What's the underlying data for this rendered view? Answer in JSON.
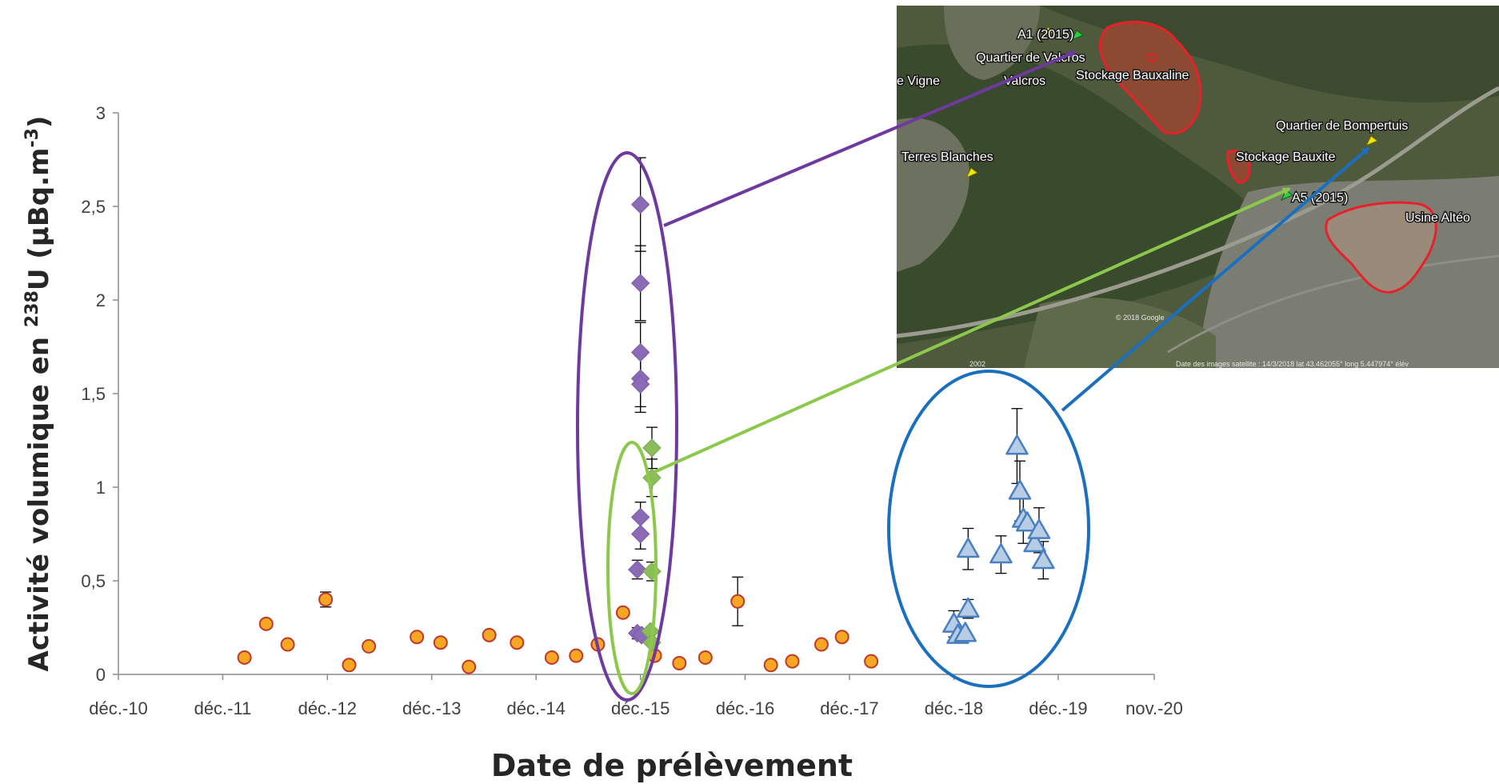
{
  "chart_data": {
    "type": "scatter",
    "title": "",
    "xlabel": "Date de prélèvement",
    "ylabel_prefix": "Activité volumique en ",
    "ylabel_isotope_mass": "238",
    "ylabel_element": "U",
    "ylabel_unit_open": " (µBq.m",
    "ylabel_unit_exp": "-3",
    "ylabel_unit_close": ")",
    "x_ticks": [
      {
        "date": "2010-12",
        "label": "déc.-10"
      },
      {
        "date": "2011-12",
        "label": "déc.-11"
      },
      {
        "date": "2012-12",
        "label": "déc.-12"
      },
      {
        "date": "2013-12",
        "label": "déc.-13"
      },
      {
        "date": "2014-12",
        "label": "déc.-14"
      },
      {
        "date": "2015-12",
        "label": "déc.-15"
      },
      {
        "date": "2016-12",
        "label": "déc.-16"
      },
      {
        "date": "2017-12",
        "label": "déc.-17"
      },
      {
        "date": "2018-12",
        "label": "déc.-18"
      },
      {
        "date": "2019-12",
        "label": "déc.-19"
      },
      {
        "date": "2020-11",
        "label": "nov.-20"
      }
    ],
    "xlim": [
      "2010-12",
      "2020-11"
    ],
    "y_ticks": [
      {
        "value": 0,
        "label": "0"
      },
      {
        "value": 0.5,
        "label": "0,5"
      },
      {
        "value": 1,
        "label": "1"
      },
      {
        "value": 1.5,
        "label": "1,5"
      },
      {
        "value": 2,
        "label": "2"
      },
      {
        "value": 2.5,
        "label": "2,5"
      },
      {
        "value": 3,
        "label": "3"
      }
    ],
    "ylim": [
      0,
      3
    ],
    "grid": false,
    "series": [
      {
        "marker": "circle",
        "fill": "#f5a623",
        "stroke": "#c0392b",
        "points": [
          {
            "x": "2012-02-15",
            "y": 0.09
          },
          {
            "x": "2012-05-01",
            "y": 0.27
          },
          {
            "x": "2012-07-15",
            "y": 0.16
          },
          {
            "x": "2012-11-25",
            "y": 0.4,
            "err": 0.04
          },
          {
            "x": "2013-02-15",
            "y": 0.05
          },
          {
            "x": "2013-04-25",
            "y": 0.15
          },
          {
            "x": "2013-10-10",
            "y": 0.2
          },
          {
            "x": "2014-01-01",
            "y": 0.17
          },
          {
            "x": "2014-04-10",
            "y": 0.04
          },
          {
            "x": "2014-06-20",
            "y": 0.21
          },
          {
            "x": "2014-09-25",
            "y": 0.17
          },
          {
            "x": "2015-01-25",
            "y": 0.09
          },
          {
            "x": "2015-04-20",
            "y": 0.1
          },
          {
            "x": "2015-07-05",
            "y": 0.16
          },
          {
            "x": "2015-10-01",
            "y": 0.33
          },
          {
            "x": "2016-01-20",
            "y": 0.1
          },
          {
            "x": "2016-04-15",
            "y": 0.06
          },
          {
            "x": "2016-07-15",
            "y": 0.09
          },
          {
            "x": "2016-11-05",
            "y": 0.39,
            "err": 0.13
          },
          {
            "x": "2017-03-01",
            "y": 0.05
          },
          {
            "x": "2017-05-15",
            "y": 0.07
          },
          {
            "x": "2017-08-25",
            "y": 0.16
          },
          {
            "x": "2017-11-05",
            "y": 0.2
          },
          {
            "x": "2018-02-15",
            "y": 0.07
          }
        ]
      },
      {
        "marker": "diamond",
        "fill": "#8b6bb5",
        "stroke": "#7a59a8",
        "points": [
          {
            "x": "2015-12-01",
            "y": 2.51,
            "err": 0.25
          },
          {
            "x": "2015-12-01",
            "y": 2.09,
            "err": 0.2
          },
          {
            "x": "2015-12-01",
            "y": 1.72,
            "err": 0.16
          },
          {
            "x": "2015-12-01",
            "y": 1.58,
            "err": 0.15
          },
          {
            "x": "2015-12-01",
            "y": 1.55,
            "err": 0.15
          },
          {
            "x": "2015-12-01",
            "y": 0.84,
            "err": 0.08
          },
          {
            "x": "2015-12-01",
            "y": 0.75,
            "err": 0.08
          },
          {
            "x": "2015-11-20",
            "y": 0.56,
            "err": 0.05
          },
          {
            "x": "2015-11-20",
            "y": 0.22,
            "err": 0.03
          },
          {
            "x": "2015-12-05",
            "y": 0.21
          }
        ]
      },
      {
        "marker": "diamond",
        "fill": "#8dbd5a",
        "stroke": "#77a84a",
        "points": [
          {
            "x": "2016-01-10",
            "y": 1.21,
            "err": 0.11
          },
          {
            "x": "2016-01-10",
            "y": 1.05,
            "err": 0.1
          },
          {
            "x": "2016-01-10",
            "y": 0.55,
            "err": 0.05
          },
          {
            "x": "2016-01-05",
            "y": 0.23
          },
          {
            "x": "2016-01-10",
            "y": 0.17
          }
        ]
      },
      {
        "marker": "triangle",
        "fill": "#b7cde6",
        "stroke": "#4a7fc1",
        "points": [
          {
            "x": "2018-12-01",
            "y": 0.27,
            "err": 0.07
          },
          {
            "x": "2018-12-15",
            "y": 0.21
          },
          {
            "x": "2019-01-10",
            "y": 0.22
          },
          {
            "x": "2019-01-20",
            "y": 0.35,
            "err": 0.05
          },
          {
            "x": "2019-01-20",
            "y": 0.67,
            "err": 0.11
          },
          {
            "x": "2019-05-15",
            "y": 0.64,
            "err": 0.1
          },
          {
            "x": "2019-07-10",
            "y": 1.22,
            "err": 0.2
          },
          {
            "x": "2019-07-20",
            "y": 0.98,
            "err": 0.16
          },
          {
            "x": "2019-08-01",
            "y": 0.83,
            "err": 0.13
          },
          {
            "x": "2019-08-15",
            "y": 0.81
          },
          {
            "x": "2019-09-10",
            "y": 0.7
          },
          {
            "x": "2019-09-25",
            "y": 0.77,
            "err": 0.12
          },
          {
            "x": "2019-10-10",
            "y": 0.61,
            "err": 0.1
          }
        ]
      }
    ],
    "highlights": [
      {
        "color": "#6f3aa0",
        "date_center": "2015-12-01",
        "y_center": 1.42,
        "arrow_to": "A1 (2015)"
      },
      {
        "color": "#8cc84b",
        "date_center": "2016-01-05",
        "y_center": 0.68,
        "arrow_to": "A5 (2015)"
      },
      {
        "color": "#1b6fbf",
        "date_center": "2019-02-25",
        "y_center": 0.62,
        "arrow_to": "Quartier de Bompertuis"
      }
    ]
  },
  "map": {
    "labels": {
      "a1": "A1 (2015)",
      "valcros_quarter": "Quartier de Valcros",
      "vigne": "e Vigne",
      "valcros": "Valcros",
      "stockage_bauxaline": "Stockage Bauxaline",
      "quartier_bompertuis": "Quartier de Bompertuis",
      "terres_blanches": "Terres Blanches",
      "stockage_bauxite": "Stockage Bauxite",
      "a5": "A5 (2015)",
      "usine_alteo": "Usine Altéo",
      "copyright": "© 2018 Google",
      "imagery": "Date des images satellite : 14/3/2018   lat  43.462055°  long   5.447974°  élév",
      "year": "2002"
    },
    "colors": {
      "zone_outline": "#e8202a",
      "pin_yellow": "#f2e600",
      "pin_green": "#2ecc40"
    }
  }
}
